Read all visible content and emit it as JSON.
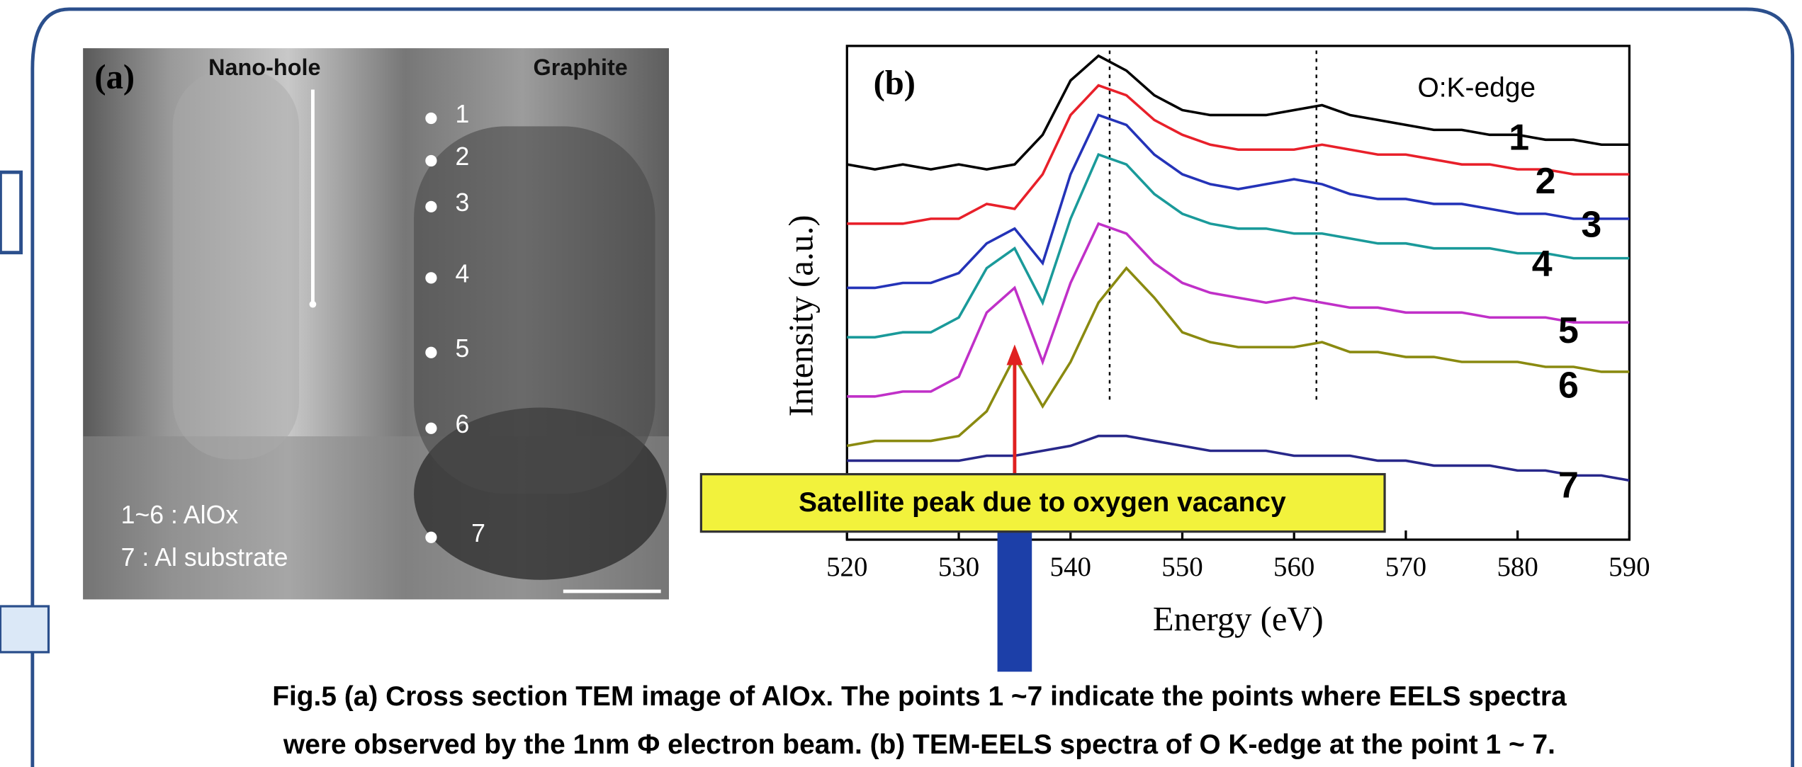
{
  "panel_a": {
    "label": "(a)",
    "labels": [
      "Nano-hole",
      "Graphite"
    ],
    "points": [
      "1",
      "2",
      "3",
      "4",
      "5",
      "6",
      "7"
    ],
    "notes": [
      "1~6 : AlOx",
      "7 : Al substrate"
    ]
  },
  "chart_data": {
    "type": "line",
    "panel_label": "(b)",
    "annotation": "O:K-edge",
    "callout": "Satellite peak due to oxygen vacancy",
    "callout_x": 535,
    "x_label": "Energy (eV)",
    "y_label": "Intensity (a.u.)",
    "x": [
      520,
      522.5,
      525,
      527.5,
      530,
      532.5,
      535,
      537.5,
      540,
      542.5,
      545,
      547.5,
      550,
      552.5,
      555,
      557.5,
      560,
      562.5,
      565,
      567.5,
      570,
      572.5,
      575,
      577.5,
      580,
      582.5,
      585,
      587.5,
      590
    ],
    "xlim": [
      520,
      590
    ],
    "xticks": [
      520,
      530,
      540,
      550,
      560,
      570,
      580,
      590
    ],
    "ylim": [
      0,
      10
    ],
    "vlines": [
      543.5,
      562
    ],
    "series": [
      {
        "name": "1",
        "color": "#000000",
        "values": [
          7.6,
          7.5,
          7.6,
          7.5,
          7.6,
          7.5,
          7.6,
          8.2,
          9.3,
          9.8,
          9.5,
          9.0,
          8.7,
          8.6,
          8.6,
          8.6,
          8.7,
          8.8,
          8.6,
          8.5,
          8.4,
          8.3,
          8.3,
          8.2,
          8.2,
          8.1,
          8.1,
          8.0,
          8.0
        ]
      },
      {
        "name": "2",
        "color": "#e8202a",
        "values": [
          6.4,
          6.4,
          6.4,
          6.5,
          6.5,
          6.8,
          6.7,
          7.4,
          8.6,
          9.2,
          9.0,
          8.5,
          8.2,
          8.0,
          7.9,
          7.9,
          7.9,
          8.0,
          7.9,
          7.8,
          7.8,
          7.7,
          7.6,
          7.6,
          7.5,
          7.5,
          7.4,
          7.4,
          7.4
        ]
      },
      {
        "name": "3",
        "color": "#2433b8",
        "values": [
          5.1,
          5.1,
          5.2,
          5.2,
          5.4,
          6.0,
          6.3,
          5.6,
          7.4,
          8.6,
          8.4,
          7.8,
          7.4,
          7.2,
          7.1,
          7.2,
          7.3,
          7.2,
          7.0,
          6.9,
          6.9,
          6.8,
          6.8,
          6.7,
          6.6,
          6.6,
          6.5,
          6.5,
          6.5
        ]
      },
      {
        "name": "4",
        "color": "#1a9a9a",
        "values": [
          4.1,
          4.1,
          4.2,
          4.2,
          4.5,
          5.5,
          5.9,
          4.8,
          6.5,
          7.8,
          7.6,
          7.0,
          6.6,
          6.4,
          6.3,
          6.3,
          6.2,
          6.2,
          6.1,
          6.0,
          6.0,
          5.9,
          5.9,
          5.9,
          5.8,
          5.8,
          5.7,
          5.7,
          5.7
        ]
      },
      {
        "name": "5",
        "color": "#c030c8",
        "values": [
          2.9,
          2.9,
          3.0,
          3.0,
          3.3,
          4.6,
          5.1,
          3.6,
          5.2,
          6.4,
          6.2,
          5.6,
          5.2,
          5.0,
          4.9,
          4.8,
          4.9,
          4.8,
          4.7,
          4.7,
          4.6,
          4.6,
          4.6,
          4.5,
          4.5,
          4.5,
          4.4,
          4.4,
          4.4
        ]
      },
      {
        "name": "6",
        "color": "#8a8a10",
        "values": [
          1.9,
          2.0,
          2.0,
          2.0,
          2.1,
          2.6,
          3.7,
          2.7,
          3.6,
          4.8,
          5.5,
          4.9,
          4.2,
          4.0,
          3.9,
          3.9,
          3.9,
          4.0,
          3.8,
          3.8,
          3.7,
          3.7,
          3.6,
          3.6,
          3.6,
          3.5,
          3.5,
          3.4,
          3.4
        ]
      },
      {
        "name": "7",
        "color": "#28288a",
        "values": [
          1.6,
          1.6,
          1.6,
          1.6,
          1.6,
          1.7,
          1.7,
          1.8,
          1.9,
          2.1,
          2.1,
          2.0,
          1.9,
          1.8,
          1.8,
          1.8,
          1.7,
          1.7,
          1.7,
          1.6,
          1.6,
          1.5,
          1.5,
          1.5,
          1.4,
          1.4,
          1.3,
          1.3,
          1.2
        ]
      }
    ]
  },
  "caption": [
    "Fig.5 (a) Cross section TEM image of AlOx. The points 1 ~7 indicate the points where EELS spectra",
    "were observed by the 1nm Φ electron beam. (b) TEM-EELS spectra of O K-edge at the point 1 ~ 7."
  ]
}
